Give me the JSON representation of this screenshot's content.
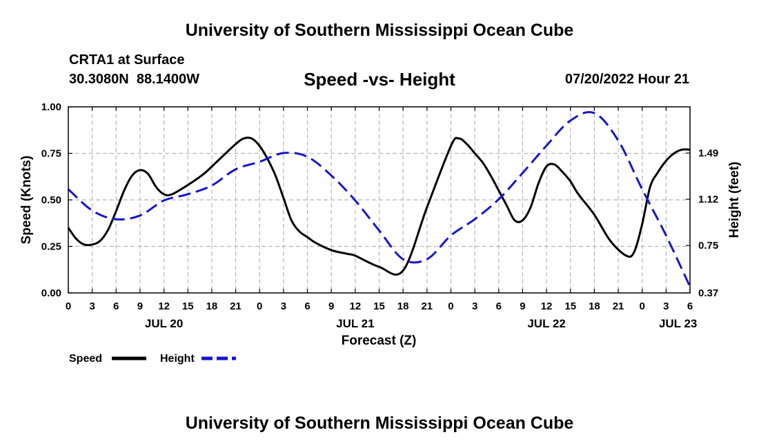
{
  "page": {
    "title": "University of Southern Mississippi Ocean Cube",
    "footer_title": "University of Southern Mississippi Ocean Cube",
    "station": "CRTA1 at Surface",
    "coords": "30.3080N  88.1400W",
    "datetime": "07/20/2022 Hour 21"
  },
  "colors": {
    "speed": "#000000",
    "height": "#1515cc",
    "grid": "#b4b4b4"
  },
  "chart_data": {
    "type": "line",
    "title": "Speed -vs- Height",
    "xlabel": "Forecast (Z)",
    "ylabel": "Speed (Knots)",
    "y2label": "Height (feet)",
    "x_unit": "hours since JUL 20 00Z",
    "xlim": [
      0,
      78
    ],
    "ylim": [
      0,
      1
    ],
    "y2lim": [
      0.37,
      1.86
    ],
    "y_ticks": [
      0,
      0.25,
      0.5,
      0.75,
      1.0
    ],
    "y_tick_labels": [
      "0.00",
      "0.25",
      "0.50",
      "0.75",
      "1.00"
    ],
    "y2_ticks": [
      0.37,
      0.75,
      1.12,
      1.49
    ],
    "y2_tick_labels": [
      "0.37",
      "0.75",
      "1.12",
      "1.49"
    ],
    "x_ticks": [
      0,
      3,
      6,
      9,
      12,
      15,
      18,
      21,
      24,
      27,
      30,
      33,
      36,
      39,
      42,
      45,
      48,
      51,
      54,
      57,
      60,
      63,
      66,
      69,
      72,
      75,
      78
    ],
    "x_tick_labels": [
      "0",
      "3",
      "6",
      "9",
      "12",
      "15",
      "18",
      "21",
      "0",
      "3",
      "6",
      "9",
      "12",
      "15",
      "18",
      "21",
      "0",
      "3",
      "6",
      "9",
      "12",
      "15",
      "18",
      "21",
      "0",
      "3",
      "6"
    ],
    "date_labels": [
      {
        "label": "JUL 20",
        "x": 12
      },
      {
        "label": "JUL 21",
        "x": 36
      },
      {
        "label": "JUL 22",
        "x": 60
      },
      {
        "label": "JUL 23",
        "x": 76.5
      }
    ],
    "legend": [
      "Speed",
      "Height"
    ],
    "series": [
      {
        "name": "Speed",
        "axis": "left",
        "style": "solid",
        "x": [
          0,
          1,
          2,
          3,
          4,
          5,
          6,
          7,
          8,
          9,
          10,
          11,
          12,
          13,
          15,
          17,
          19,
          21,
          22,
          23,
          24,
          25,
          26,
          27,
          28,
          29,
          30,
          31,
          33,
          35,
          36,
          39,
          42,
          45,
          48,
          49,
          50,
          51,
          52,
          53,
          54,
          55,
          56,
          57,
          58,
          59,
          60,
          61,
          62,
          63,
          64,
          66,
          68,
          70,
          71,
          72,
          73,
          74,
          75,
          76,
          77,
          78
        ],
        "values": [
          0.35,
          0.29,
          0.26,
          0.26,
          0.28,
          0.34,
          0.44,
          0.55,
          0.63,
          0.66,
          0.64,
          0.57,
          0.53,
          0.53,
          0.58,
          0.64,
          0.72,
          0.8,
          0.83,
          0.83,
          0.79,
          0.72,
          0.63,
          0.51,
          0.39,
          0.33,
          0.3,
          0.27,
          0.23,
          0.21,
          0.2,
          0.14,
          0.12,
          0.46,
          0.79,
          0.83,
          0.8,
          0.75,
          0.7,
          0.63,
          0.55,
          0.47,
          0.39,
          0.39,
          0.46,
          0.59,
          0.68,
          0.69,
          0.65,
          0.6,
          0.53,
          0.42,
          0.28,
          0.2,
          0.22,
          0.37,
          0.57,
          0.65,
          0.71,
          0.75,
          0.77,
          0.77
        ]
      },
      {
        "name": "Height",
        "axis": "right",
        "style": "dashed",
        "x": [
          0,
          3,
          6,
          9,
          12,
          15,
          18,
          21,
          24,
          27,
          30,
          33,
          36,
          39,
          42,
          45,
          48,
          51,
          54,
          57,
          60,
          63,
          66,
          69,
          72,
          75,
          78
        ],
        "values": [
          1.2,
          1.03,
          0.96,
          0.99,
          1.11,
          1.16,
          1.23,
          1.36,
          1.42,
          1.49,
          1.46,
          1.31,
          1.11,
          0.87,
          0.64,
          0.64,
          0.83,
          0.96,
          1.12,
          1.33,
          1.55,
          1.75,
          1.81,
          1.59,
          1.2,
          0.83,
          0.42
        ]
      }
    ]
  }
}
